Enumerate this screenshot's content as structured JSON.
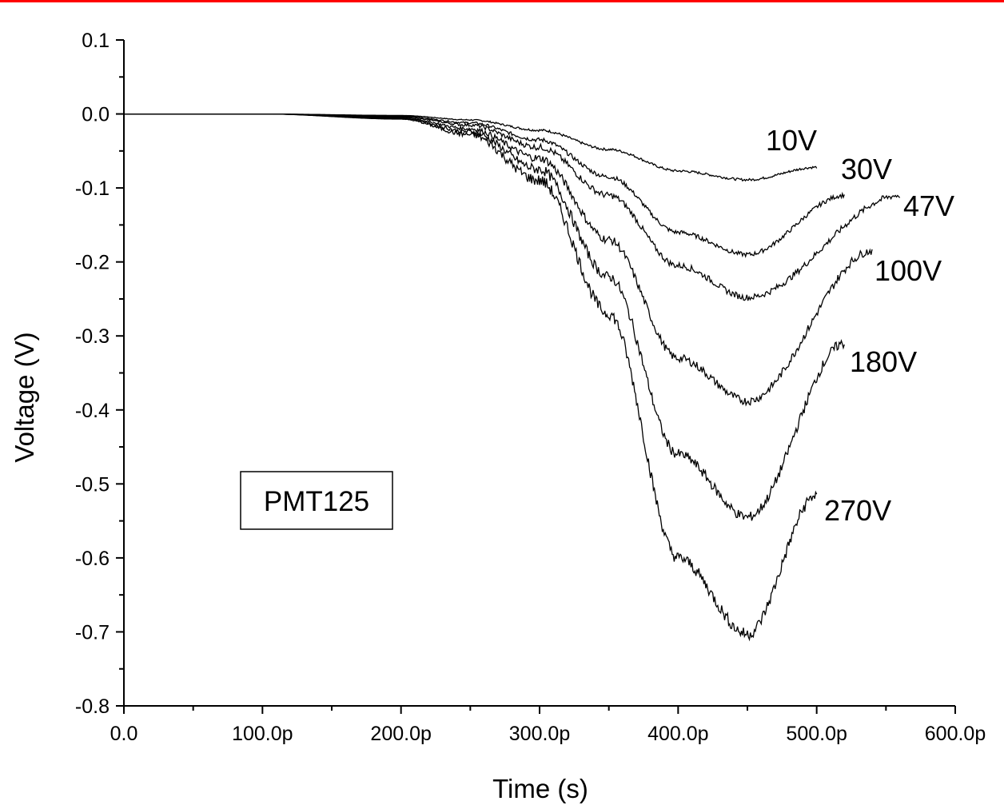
{
  "colors": {
    "top_rule": "#ff0000",
    "line": "#000000",
    "background": "#ffffff"
  },
  "chart_data": {
    "type": "line",
    "title": "",
    "xlabel": "Time (s)",
    "ylabel": "Voltage (V)",
    "xlim": [
      0,
      600
    ],
    "x_unit_note": "picoseconds",
    "ylim": [
      -0.8,
      0.1
    ],
    "x_ticks": [
      0,
      100,
      200,
      300,
      400,
      500,
      600
    ],
    "x_tick_labels": [
      "0.0",
      "100.0p",
      "200.0p",
      "300.0p",
      "400.0p",
      "500.0p",
      "600.0p"
    ],
    "y_ticks": [
      0.1,
      0.0,
      -0.1,
      -0.2,
      -0.3,
      -0.4,
      -0.5,
      -0.6,
      -0.7,
      -0.8
    ],
    "y_tick_labels": [
      "0.1",
      "0.0",
      "-0.1",
      "-0.2",
      "-0.3",
      "-0.4",
      "-0.5",
      "-0.6",
      "-0.7",
      "-0.8"
    ],
    "grid": false,
    "legend": "inline labels at curve ends",
    "annotation": "PMT125",
    "series": [
      {
        "name": "10V",
        "x": [
          0,
          100,
          200,
          250,
          300,
          350,
          400,
          450,
          500
        ],
        "values": [
          0,
          0,
          -0.002,
          -0.008,
          -0.022,
          -0.048,
          -0.077,
          -0.089,
          -0.072
        ]
      },
      {
        "name": "30V",
        "x": [
          0,
          100,
          200,
          250,
          300,
          350,
          400,
          450,
          520
        ],
        "values": [
          0,
          0,
          -0.003,
          -0.012,
          -0.035,
          -0.085,
          -0.16,
          -0.19,
          -0.11
        ]
      },
      {
        "name": "47V",
        "x": [
          0,
          100,
          200,
          250,
          300,
          350,
          400,
          450,
          560
        ],
        "values": [
          0,
          0,
          -0.004,
          -0.015,
          -0.045,
          -0.11,
          -0.205,
          -0.248,
          -0.11
        ]
      },
      {
        "name": "100V",
        "x": [
          0,
          100,
          200,
          250,
          300,
          350,
          400,
          450,
          540
        ],
        "values": [
          0,
          0,
          -0.005,
          -0.02,
          -0.06,
          -0.17,
          -0.33,
          -0.388,
          -0.185
        ]
      },
      {
        "name": "180V",
        "x": [
          0,
          100,
          200,
          250,
          300,
          350,
          400,
          450,
          520
        ],
        "values": [
          0,
          0,
          -0.006,
          -0.024,
          -0.075,
          -0.22,
          -0.46,
          -0.545,
          -0.31
        ]
      },
      {
        "name": "270V",
        "x": [
          0,
          100,
          200,
          250,
          300,
          350,
          400,
          450,
          500
        ],
        "values": [
          0,
          0,
          -0.007,
          -0.028,
          -0.09,
          -0.27,
          -0.6,
          -0.703,
          -0.515
        ]
      }
    ]
  }
}
